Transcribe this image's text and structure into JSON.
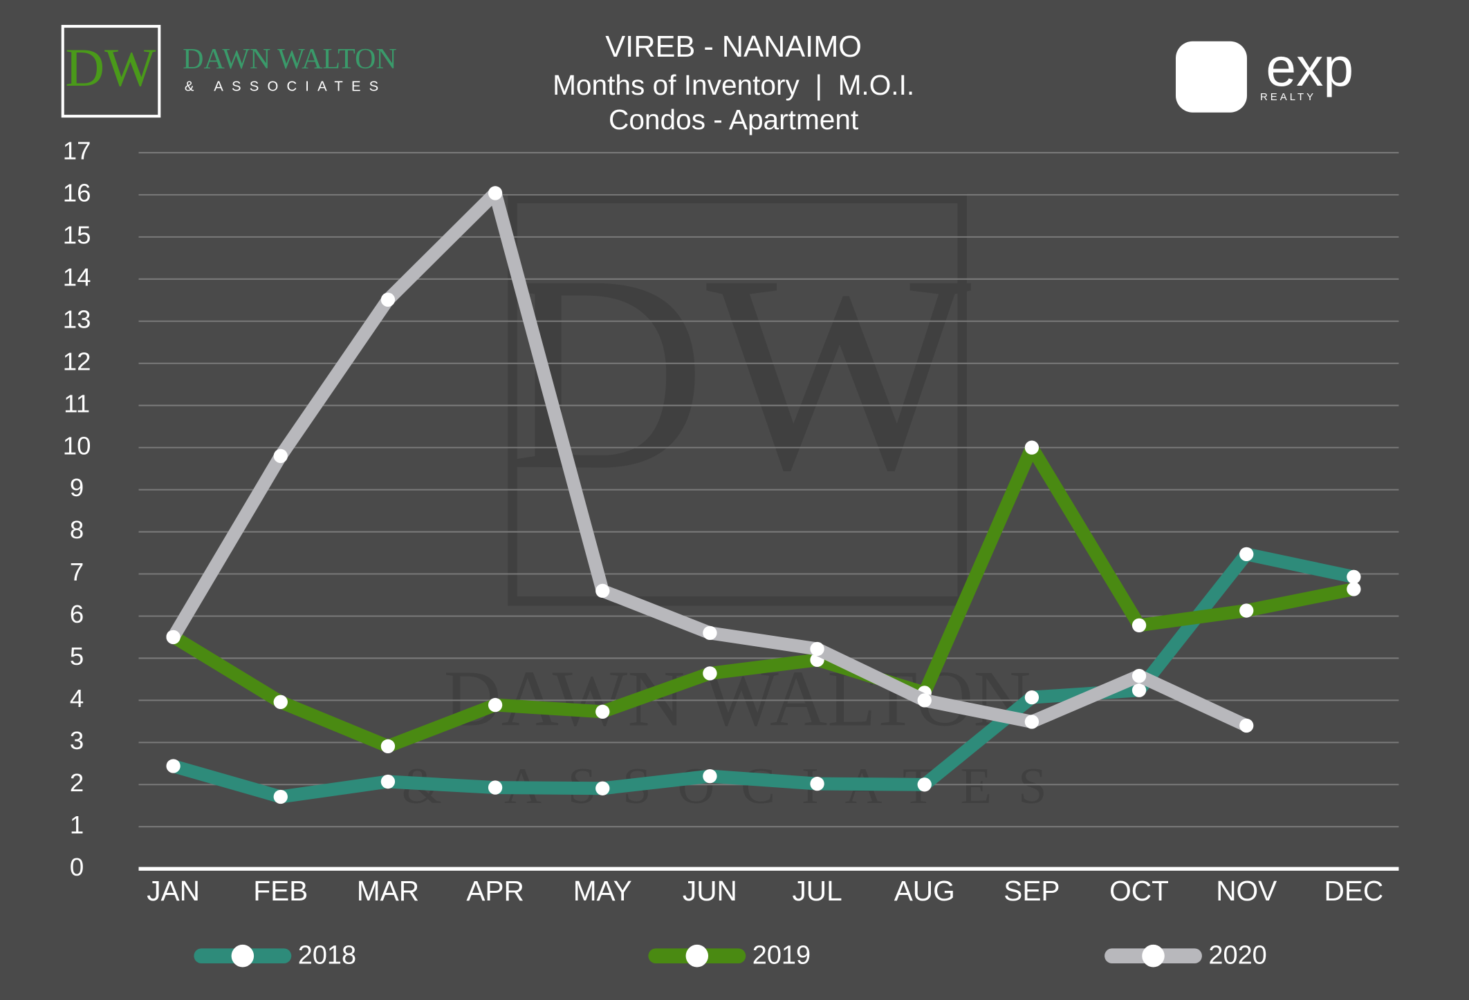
{
  "chart_data": {
    "type": "line",
    "title": "VIREB - NANAIMO",
    "subtitle": [
      "Months of Inventory  |  M.O.I.",
      "Condos - Apartment"
    ],
    "logos": {
      "left_mark": "DW",
      "left_name": "DAWN WALTON",
      "left_sub": "& ASSOCIATES",
      "right_name": "exp",
      "right_sub": "REALTY"
    },
    "categories": [
      "JAN",
      "FEB",
      "MAR",
      "APR",
      "MAY",
      "JUN",
      "JUL",
      "AUG",
      "SEP",
      "OCT",
      "NOV",
      "DEC"
    ],
    "series": [
      {
        "name": "2018",
        "color": "#2e8b7a",
        "values": [
          2.44,
          1.71,
          2.07,
          1.93,
          1.91,
          2.2,
          2.02,
          2.0,
          4.07,
          4.24,
          7.47,
          6.93
        ]
      },
      {
        "name": "2019",
        "color": "#4a8a12",
        "values": [
          5.51,
          3.96,
          2.91,
          3.89,
          3.73,
          4.64,
          4.96,
          4.18,
          10.0,
          5.78,
          6.13,
          6.64
        ]
      },
      {
        "name": "2020",
        "color": "#b8b8bc",
        "values": [
          5.5,
          9.8,
          13.51,
          16.04,
          6.6,
          5.6,
          5.22,
          4.0,
          3.49,
          4.58,
          3.4,
          null
        ]
      }
    ],
    "ylim": [
      0,
      17
    ],
    "yticks": [
      0,
      1,
      2,
      3,
      4,
      5,
      6,
      7,
      8,
      9,
      10,
      11,
      12,
      13,
      14,
      15,
      16,
      17
    ],
    "grid": true
  }
}
